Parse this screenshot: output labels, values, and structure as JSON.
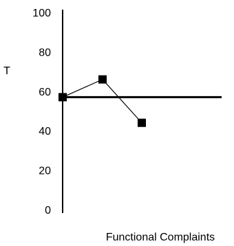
{
  "chart_data": {
    "type": "line",
    "title": "",
    "xlabel": "Functional Complaints",
    "ylabel": "T",
    "ylim": [
      0,
      100
    ],
    "yticks": [
      0,
      20,
      40,
      60,
      80,
      100
    ],
    "grid": false,
    "reference_line": 57,
    "series": [
      {
        "values": [
          57,
          66,
          44
        ]
      }
    ],
    "colors": {
      "line": "#000000",
      "marker": "#000000",
      "axis": "#000000"
    }
  }
}
